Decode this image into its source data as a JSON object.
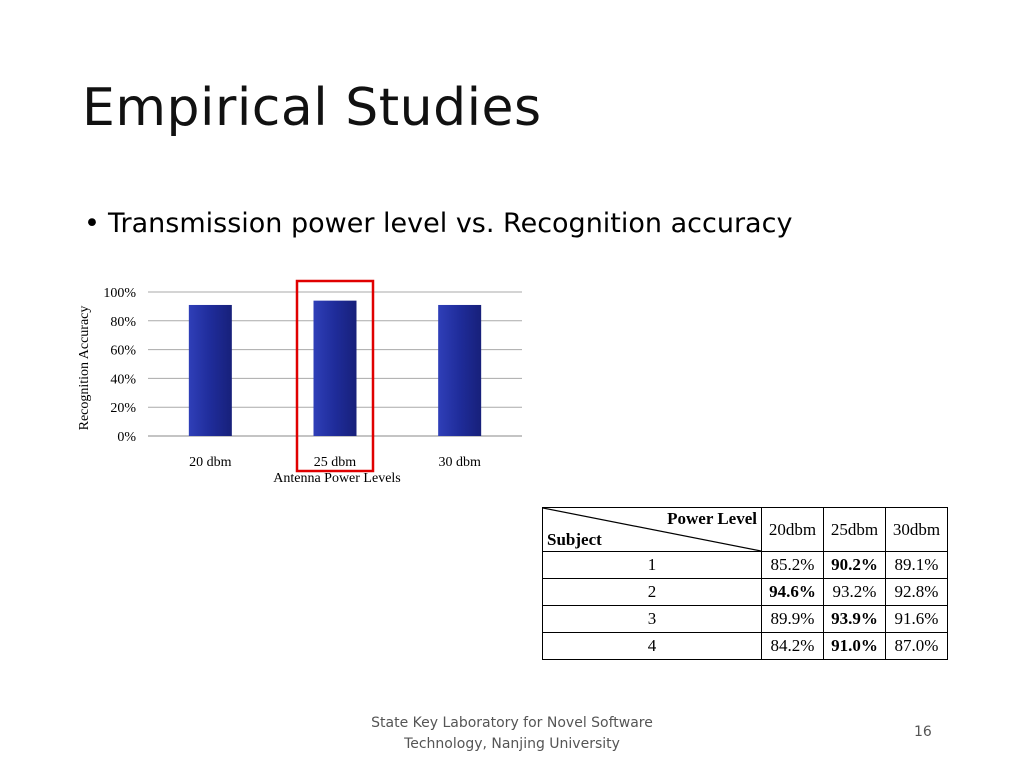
{
  "slide": {
    "title": "Empirical Studies",
    "bullet": "Transmission power level vs. Recognition accuracy",
    "footer_line1": "State Key Laboratory for Novel Software",
    "footer_line2": "Technology, Nanjing University",
    "page_number": "16"
  },
  "chart_data": {
    "type": "bar",
    "categories": [
      "20 dbm",
      "25 dbm",
      "30 dbm"
    ],
    "values": [
      91,
      94,
      91
    ],
    "xlabel": "Antenna Power Levels",
    "ylabel": "Recognition Accuracy",
    "yticks": [
      "0%",
      "20%",
      "40%",
      "60%",
      "80%",
      "100%"
    ],
    "ylim": [
      0,
      100
    ],
    "grid": true,
    "bar_color": "#1f2c9a",
    "highlight_category": "25 dbm",
    "highlight_color": "#e00000"
  },
  "table": {
    "header_top": "Power Level",
    "header_bottom": "Subject",
    "columns": [
      "20dbm",
      "25dbm",
      "30dbm"
    ],
    "rows": [
      {
        "subject": "1",
        "values": [
          "85.2%",
          "90.2%",
          "89.1%"
        ],
        "bold": [
          false,
          true,
          false
        ]
      },
      {
        "subject": "2",
        "values": [
          "94.6%",
          "93.2%",
          "92.8%"
        ],
        "bold": [
          true,
          false,
          false
        ]
      },
      {
        "subject": "3",
        "values": [
          "89.9%",
          "93.9%",
          "91.6%"
        ],
        "bold": [
          false,
          true,
          false
        ]
      },
      {
        "subject": "4",
        "values": [
          "84.2%",
          "91.0%",
          "87.0%"
        ],
        "bold": [
          false,
          true,
          false
        ]
      }
    ]
  }
}
